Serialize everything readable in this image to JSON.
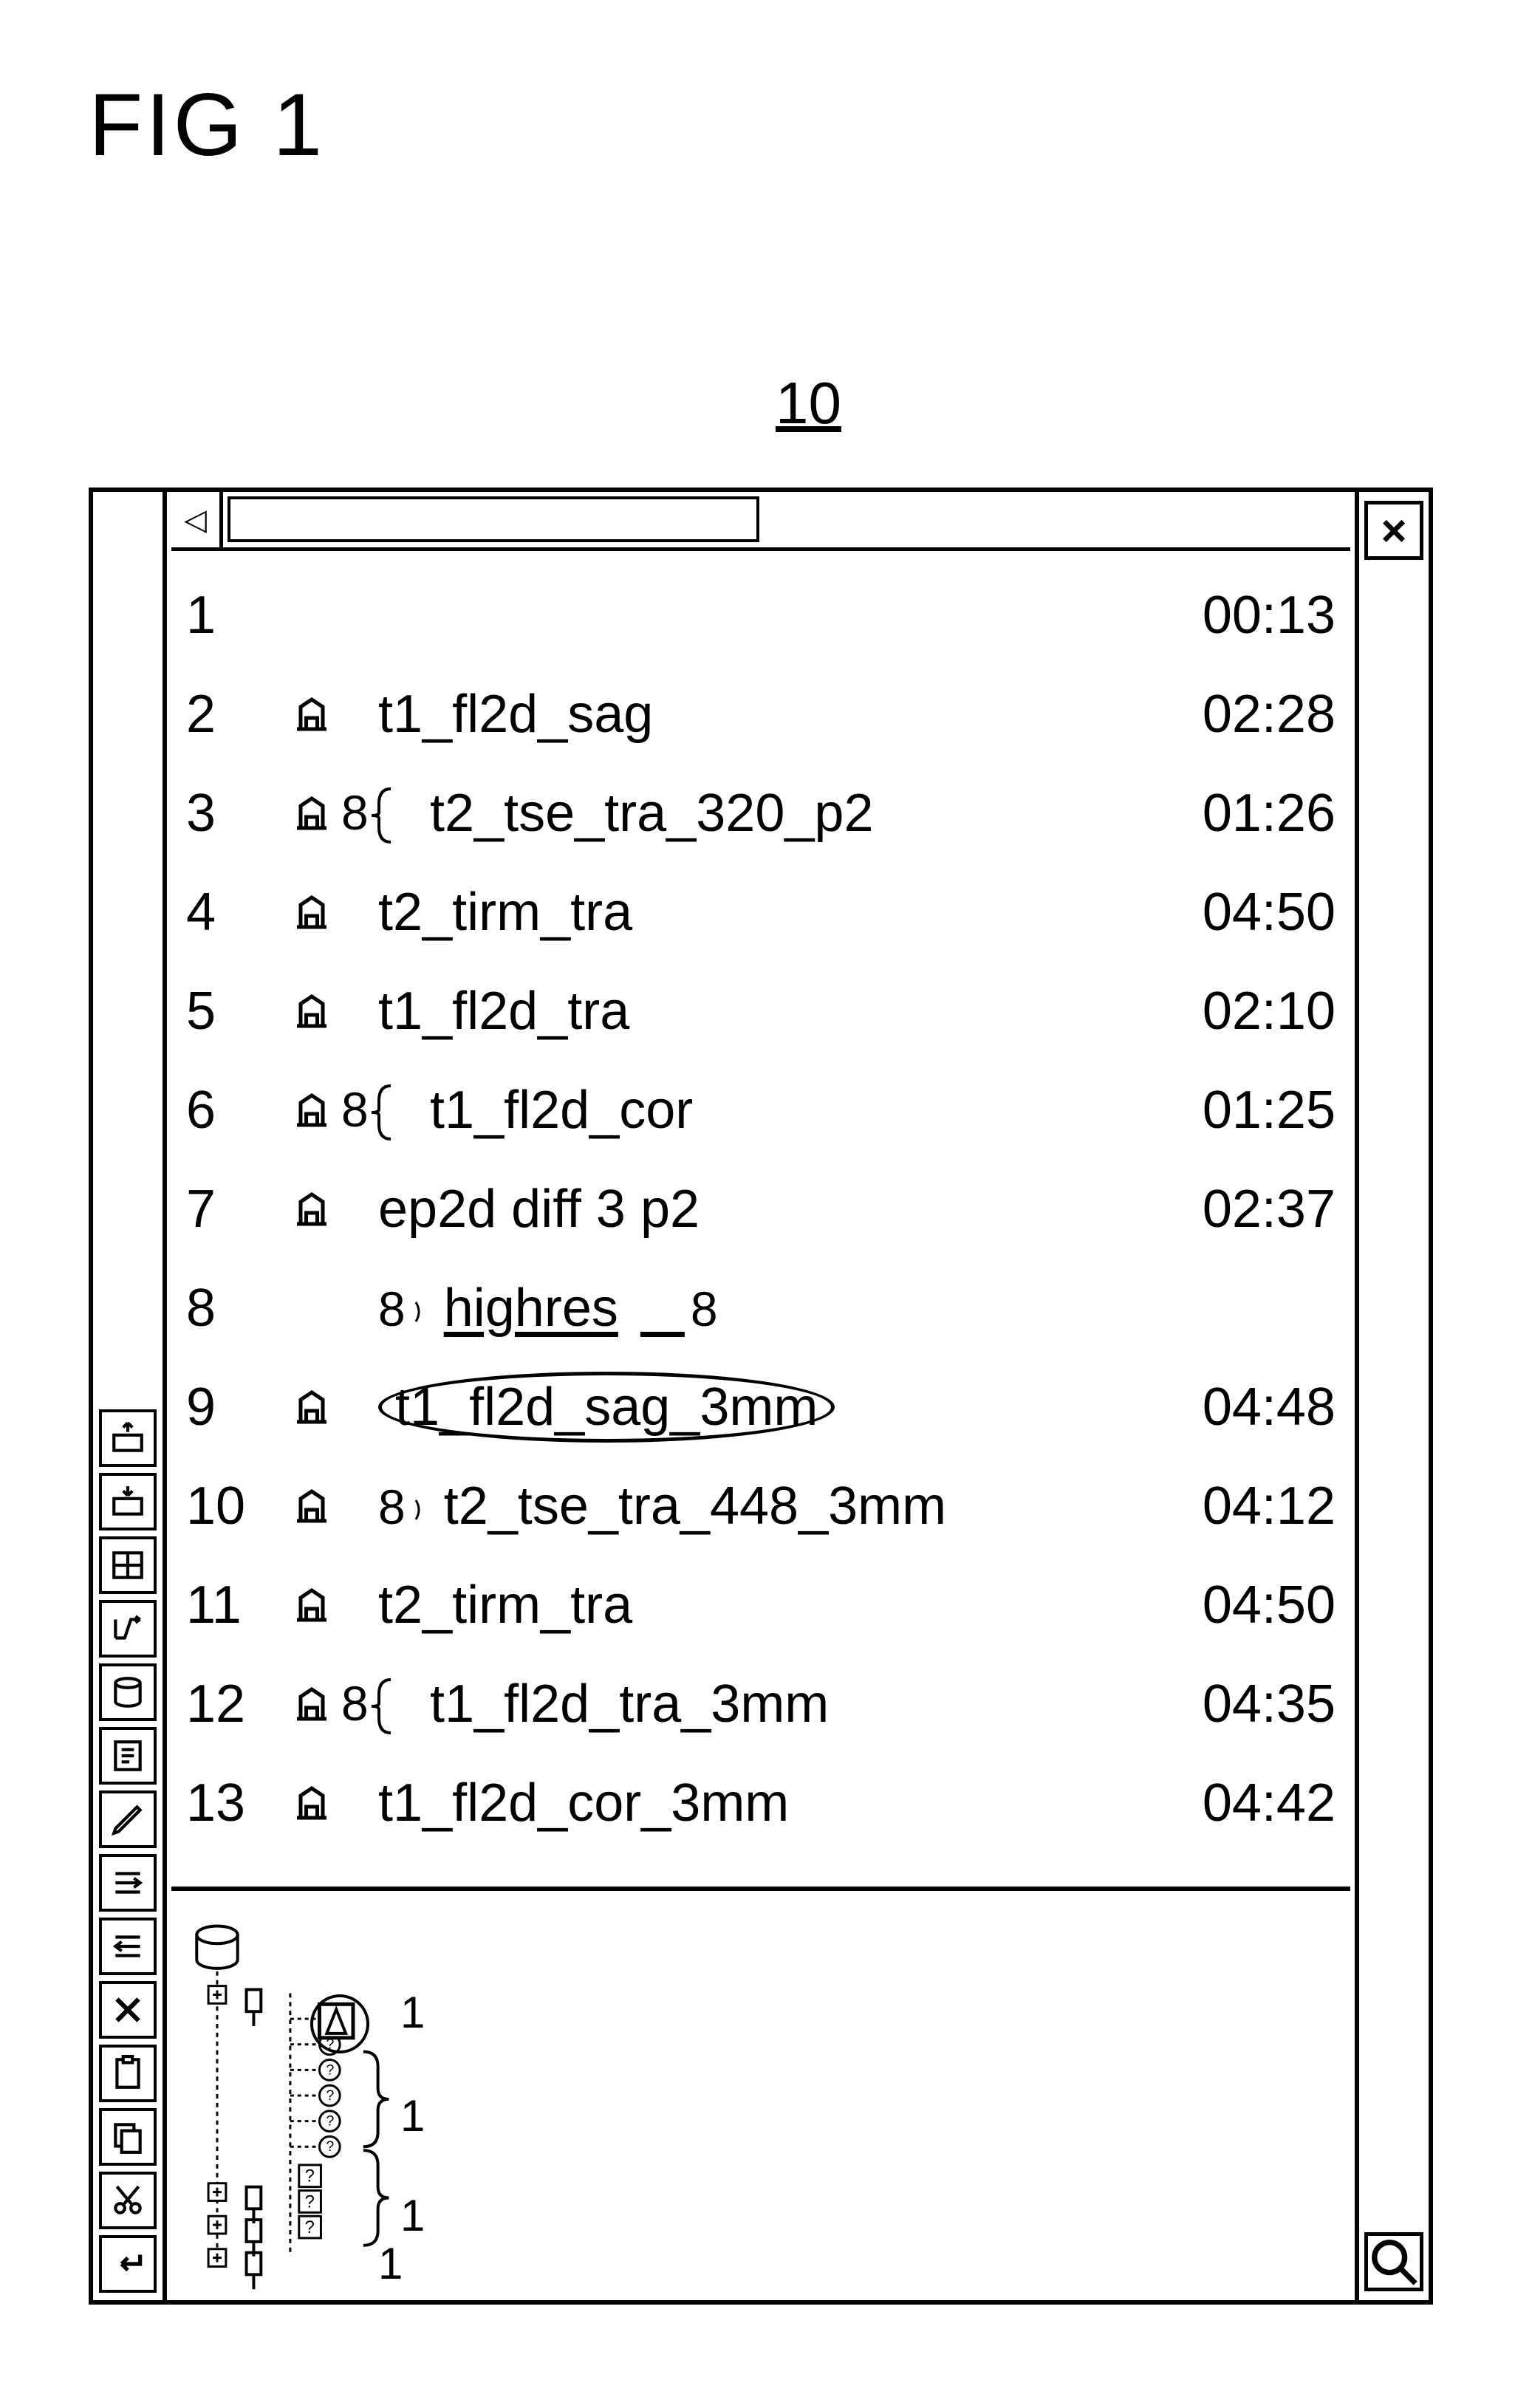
{
  "figure_label": "FIG 1",
  "window_callout": "10",
  "toolbar": {
    "icons": [
      "enter",
      "cut",
      "copy",
      "paste",
      "delete",
      "indent-left",
      "indent-right",
      "pencil",
      "notes",
      "database",
      "step",
      "panel-split",
      "keyboard-in",
      "keyboard-out"
    ]
  },
  "titlebar": {
    "close": "×",
    "search": "🔍"
  },
  "scrollbar": {
    "arrow": "◁"
  },
  "annotation_label": "8",
  "tree_callout_label": "1",
  "sequences": [
    {
      "num": "1",
      "icon": false,
      "name": "",
      "time": "00:13"
    },
    {
      "num": "2",
      "icon": true,
      "name": "t1_fl2d_sag",
      "time": "02:28"
    },
    {
      "num": "3",
      "icon": true,
      "name": "t2_tse_tra_320_p2",
      "time": "01:26",
      "brace": true
    },
    {
      "num": "4",
      "icon": true,
      "name": "t2_tirm_tra",
      "time": "04:50"
    },
    {
      "num": "5",
      "icon": true,
      "name": "t1_fl2d_tra",
      "time": "02:10"
    },
    {
      "num": "6",
      "icon": true,
      "name": "t1_fl2d_cor",
      "time": "01:25",
      "brace": true
    },
    {
      "num": "7",
      "icon": true,
      "name": "ep2d diff 3 p2",
      "time": "02:37"
    },
    {
      "num": "8",
      "icon": false,
      "name": "highres",
      "time": "",
      "underline": true,
      "leading8": true,
      "trailing8": true
    },
    {
      "num": "9",
      "icon": true,
      "name": "t1_fl2d_sag_3mm",
      "time": "04:48",
      "ellipse": true
    },
    {
      "num": "10",
      "icon": true,
      "name": "t2_tse_tra_448_3mm",
      "time": "04:12",
      "leading8": true
    },
    {
      "num": "11",
      "icon": true,
      "name": "t2_tirm_tra",
      "time": "04:50"
    },
    {
      "num": "12",
      "icon": true,
      "name": "t1_fl2d_tra_3mm",
      "time": "04:35",
      "brace": true
    },
    {
      "num": "13",
      "icon": true,
      "name": "t1_fl2d_cor_3mm",
      "time": "04:42"
    }
  ],
  "style": {
    "stroke": "#000000",
    "stroke_width": 5,
    "font_size_body": 72,
    "font_size_label": 80
  }
}
